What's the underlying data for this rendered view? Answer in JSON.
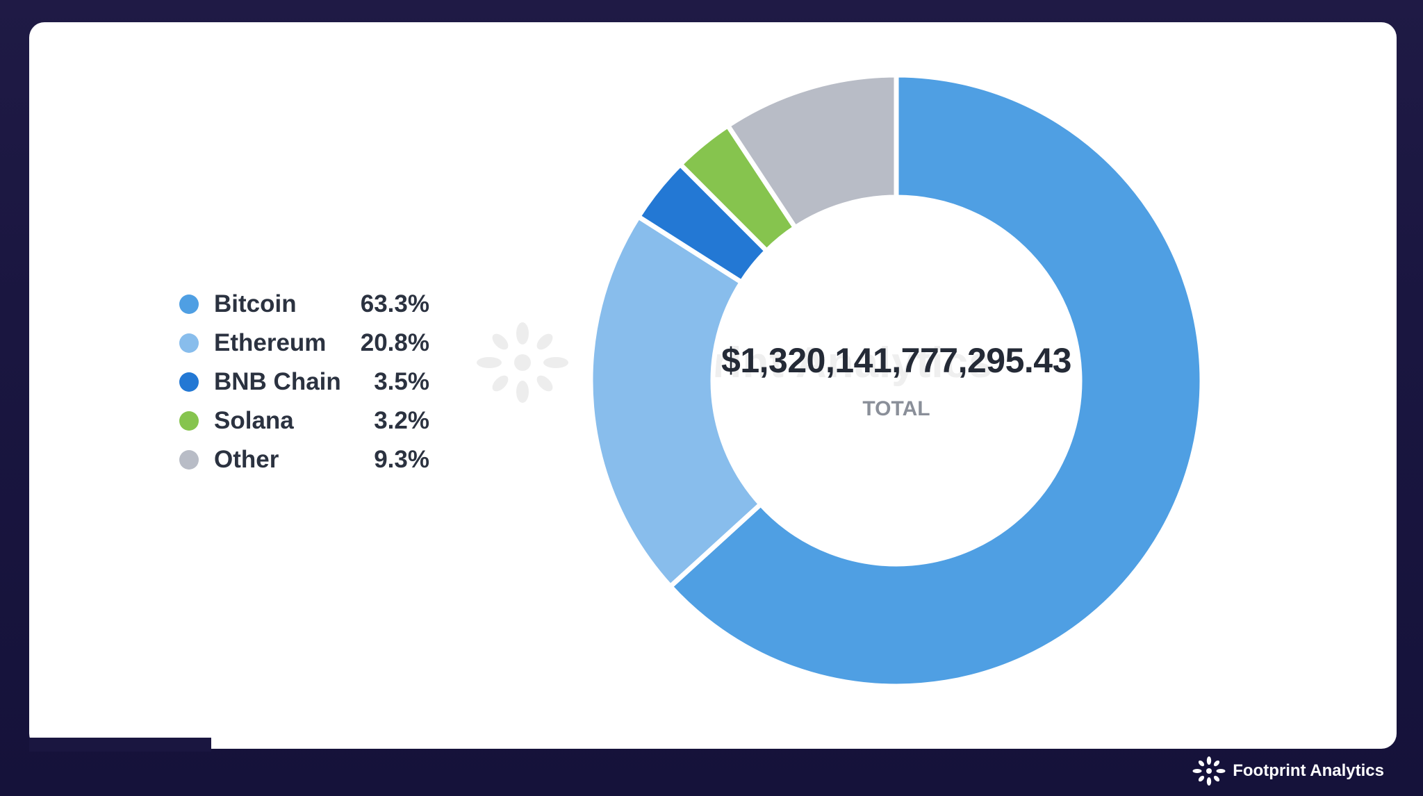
{
  "colors": {
    "bitcoin": "#4f9fe3",
    "ethereum": "#88bdec",
    "bnb_chain": "#2378d4",
    "solana": "#86c44e",
    "other": "#b8bcc6"
  },
  "chart_data": {
    "type": "pie",
    "variant": "donut",
    "categories": [
      "Bitcoin",
      "Ethereum",
      "BNB Chain",
      "Solana",
      "Other"
    ],
    "values": [
      63.3,
      20.8,
      3.5,
      3.2,
      9.3
    ],
    "value_labels": [
      "63.3%",
      "20.8%",
      "3.5%",
      "3.2%",
      "9.3%"
    ],
    "unit": "%",
    "center_total": "$1,320,141,777,295.43",
    "center_label": "TOTAL",
    "legend_position": "left"
  },
  "watermark": {
    "text": "Footprint Analytics"
  },
  "brand": {
    "name": "Footprint Analytics",
    "icon": "footprint-logo-icon"
  }
}
